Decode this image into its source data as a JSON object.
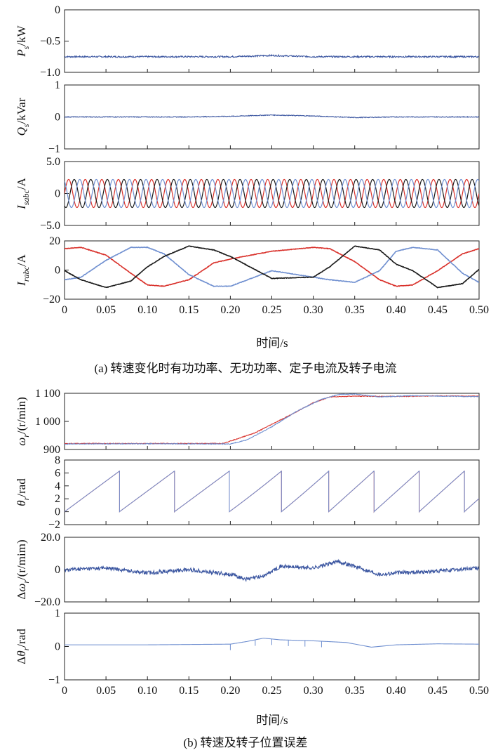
{
  "colors": {
    "blue": "#3a55a0",
    "lightblue": "#6f8fd0",
    "red": "#d9312b",
    "black": "#1a1a1a"
  },
  "xaxis": {
    "ticks": [
      "0",
      "0.05",
      "0.10",
      "0.15",
      "0.20",
      "0.25",
      "0.30",
      "0.35",
      "0.40",
      "0.45",
      "0.50"
    ],
    "label_a": "时间/s",
    "label_b": "时间/s"
  },
  "captions": {
    "a": "(a) 转速变化时有功功率、无功功率、定子电流及转子电流",
    "b": "(b) 转速及转子位置误差"
  },
  "panel_labels": {
    "ps": {
      "main": "P",
      "sub": "s",
      "rest": "/kW"
    },
    "qs": {
      "main": "Q",
      "sub": "s",
      "rest": "/kVar"
    },
    "isabc": {
      "main": "I",
      "sub": "sabc",
      "rest": "/A"
    },
    "irabc": {
      "main": "I",
      "sub": "rabc",
      "rest": "/A"
    },
    "wr": {
      "main": "ω",
      "sub": "r",
      "rest": "/(r/min)"
    },
    "thr": {
      "main": "θ",
      "sub": "r",
      "rest": "/rad"
    },
    "dwr": {
      "pre": "Δ",
      "main": "ω",
      "sub": "r",
      "rest": "/(r/mim)"
    },
    "dthr": {
      "pre": "Δ",
      "main": "θ",
      "sub": "r",
      "rest": "/rad"
    }
  },
  "chart_data": [
    {
      "type": "line",
      "id": "ps",
      "xlabel": "时间/s",
      "ylim": [
        -1.0,
        0
      ],
      "yticks": [
        "0",
        "−0.5",
        "−1.0"
      ],
      "series": [
        {
          "color": "blue",
          "x": [
            0,
            0.1,
            0.2,
            0.25,
            0.3,
            0.4,
            0.5
          ],
          "y": [
            -0.75,
            -0.75,
            -0.75,
            -0.73,
            -0.75,
            -0.75,
            -0.75
          ]
        }
      ]
    },
    {
      "type": "line",
      "id": "qs",
      "xlabel": "时间/s",
      "ylim": [
        -1,
        1
      ],
      "yticks": [
        "1",
        "0",
        "−1"
      ],
      "series": [
        {
          "color": "blue",
          "x": [
            0,
            0.15,
            0.2,
            0.25,
            0.3,
            0.35,
            0.4,
            0.5
          ],
          "y": [
            0,
            0,
            0.02,
            0.06,
            0.03,
            -0.02,
            0,
            0
          ]
        }
      ]
    },
    {
      "type": "line",
      "id": "isabc",
      "xlabel": "时间/s",
      "ylim": [
        -5.0,
        5.0
      ],
      "yticks": [
        "5.0",
        "0",
        "−5.0"
      ],
      "amplitude": 2.2,
      "frequency_hz": 50,
      "phases_deg": [
        0,
        120,
        240
      ],
      "series_colors": [
        "red",
        "black",
        "lightblue"
      ]
    },
    {
      "type": "line",
      "id": "irabc",
      "xlabel": "时间/s",
      "ylim": [
        -25,
        20
      ],
      "yticks": [
        "20",
        "0",
        "−20"
      ],
      "series": [
        {
          "color": "red",
          "x": [
            0,
            0.02,
            0.05,
            0.08,
            0.1,
            0.12,
            0.15,
            0.18,
            0.2,
            0.25,
            0.3,
            0.32,
            0.35,
            0.38,
            0.4,
            0.42,
            0.45,
            0.48,
            0.5
          ],
          "y": [
            14,
            15,
            9,
            -5,
            -14,
            -15,
            -10,
            3,
            6,
            12,
            15,
            14,
            4,
            -10,
            -15,
            -14,
            -3,
            10,
            14
          ]
        },
        {
          "color": "lightblue",
          "x": [
            0,
            0.02,
            0.05,
            0.08,
            0.1,
            0.12,
            0.15,
            0.18,
            0.2,
            0.25,
            0.3,
            0.32,
            0.35,
            0.38,
            0.4,
            0.42,
            0.45,
            0.48,
            0.5
          ],
          "y": [
            -10,
            -8,
            5,
            15,
            15,
            10,
            -6,
            -15,
            -15,
            -3,
            -8,
            -10,
            -12,
            -3,
            12,
            15,
            13,
            -5,
            -12
          ]
        },
        {
          "color": "black",
          "x": [
            0,
            0.02,
            0.05,
            0.08,
            0.1,
            0.12,
            0.15,
            0.18,
            0.2,
            0.25,
            0.3,
            0.32,
            0.35,
            0.38,
            0.4,
            0.42,
            0.45,
            0.48,
            0.5
          ],
          "y": [
            -3,
            -10,
            -16,
            -11,
            0,
            8,
            16,
            13,
            8,
            -9,
            -8,
            0,
            16,
            13,
            2,
            -3,
            -16,
            -13,
            -2
          ]
        }
      ]
    },
    {
      "type": "line",
      "id": "wr",
      "xlabel": "时间/s",
      "ylim": [
        880,
        1115
      ],
      "yticks": [
        "1 100",
        "1 000",
        "900"
      ],
      "series": [
        {
          "color": "red",
          "x": [
            0,
            0.1,
            0.19,
            0.2,
            0.23,
            0.27,
            0.3,
            0.32,
            0.35,
            0.4,
            0.45,
            0.5
          ],
          "y": [
            905,
            905,
            905,
            915,
            950,
            1020,
            1075,
            1100,
            1103,
            1102,
            1104,
            1103
          ]
        },
        {
          "color": "lightblue",
          "x": [
            0,
            0.1,
            0.2,
            0.22,
            0.25,
            0.28,
            0.31,
            0.33,
            0.35,
            0.38,
            0.42,
            0.5
          ],
          "y": [
            903,
            904,
            903,
            920,
            975,
            1040,
            1090,
            1110,
            1112,
            1100,
            1105,
            1101
          ]
        }
      ]
    },
    {
      "type": "line",
      "id": "thr",
      "xlabel": "时间/s",
      "ylim": [
        -2,
        8
      ],
      "yticks": [
        "8",
        "6",
        "4",
        "2",
        "0",
        "−2"
      ],
      "sawtooth": {
        "max": 6.28,
        "omega_before": 905,
        "omega_after": 1100,
        "ramp": [
          0.2,
          0.32
        ]
      },
      "series_colors": [
        "red",
        "lightblue"
      ]
    },
    {
      "type": "line",
      "id": "dwr",
      "xlabel": "时间/s",
      "ylim": [
        -20,
        20
      ],
      "yticks": [
        "20.0",
        "0",
        "−20.0"
      ],
      "series": [
        {
          "color": "blue",
          "x": [
            0,
            0.05,
            0.1,
            0.15,
            0.2,
            0.22,
            0.24,
            0.26,
            0.3,
            0.33,
            0.35,
            0.38,
            0.4,
            0.45,
            0.5
          ],
          "y": [
            0,
            1,
            -2,
            0,
            -3,
            -6,
            -4,
            2,
            1,
            5,
            2,
            -3,
            -2,
            -1,
            1
          ]
        }
      ]
    },
    {
      "type": "line",
      "id": "dthr",
      "xlabel": "时间/s",
      "ylim": [
        -1,
        1
      ],
      "yticks": [
        "1",
        "0",
        "−1"
      ],
      "series": [
        {
          "color": "lightblue",
          "x": [
            0,
            0.1,
            0.2,
            0.22,
            0.24,
            0.26,
            0.3,
            0.34,
            0.37,
            0.4,
            0.45,
            0.5
          ],
          "y": [
            0.05,
            0.05,
            0.07,
            0.15,
            0.25,
            0.2,
            0.17,
            0.12,
            -0.02,
            0.05,
            0.08,
            0.07
          ]
        }
      ]
    }
  ]
}
